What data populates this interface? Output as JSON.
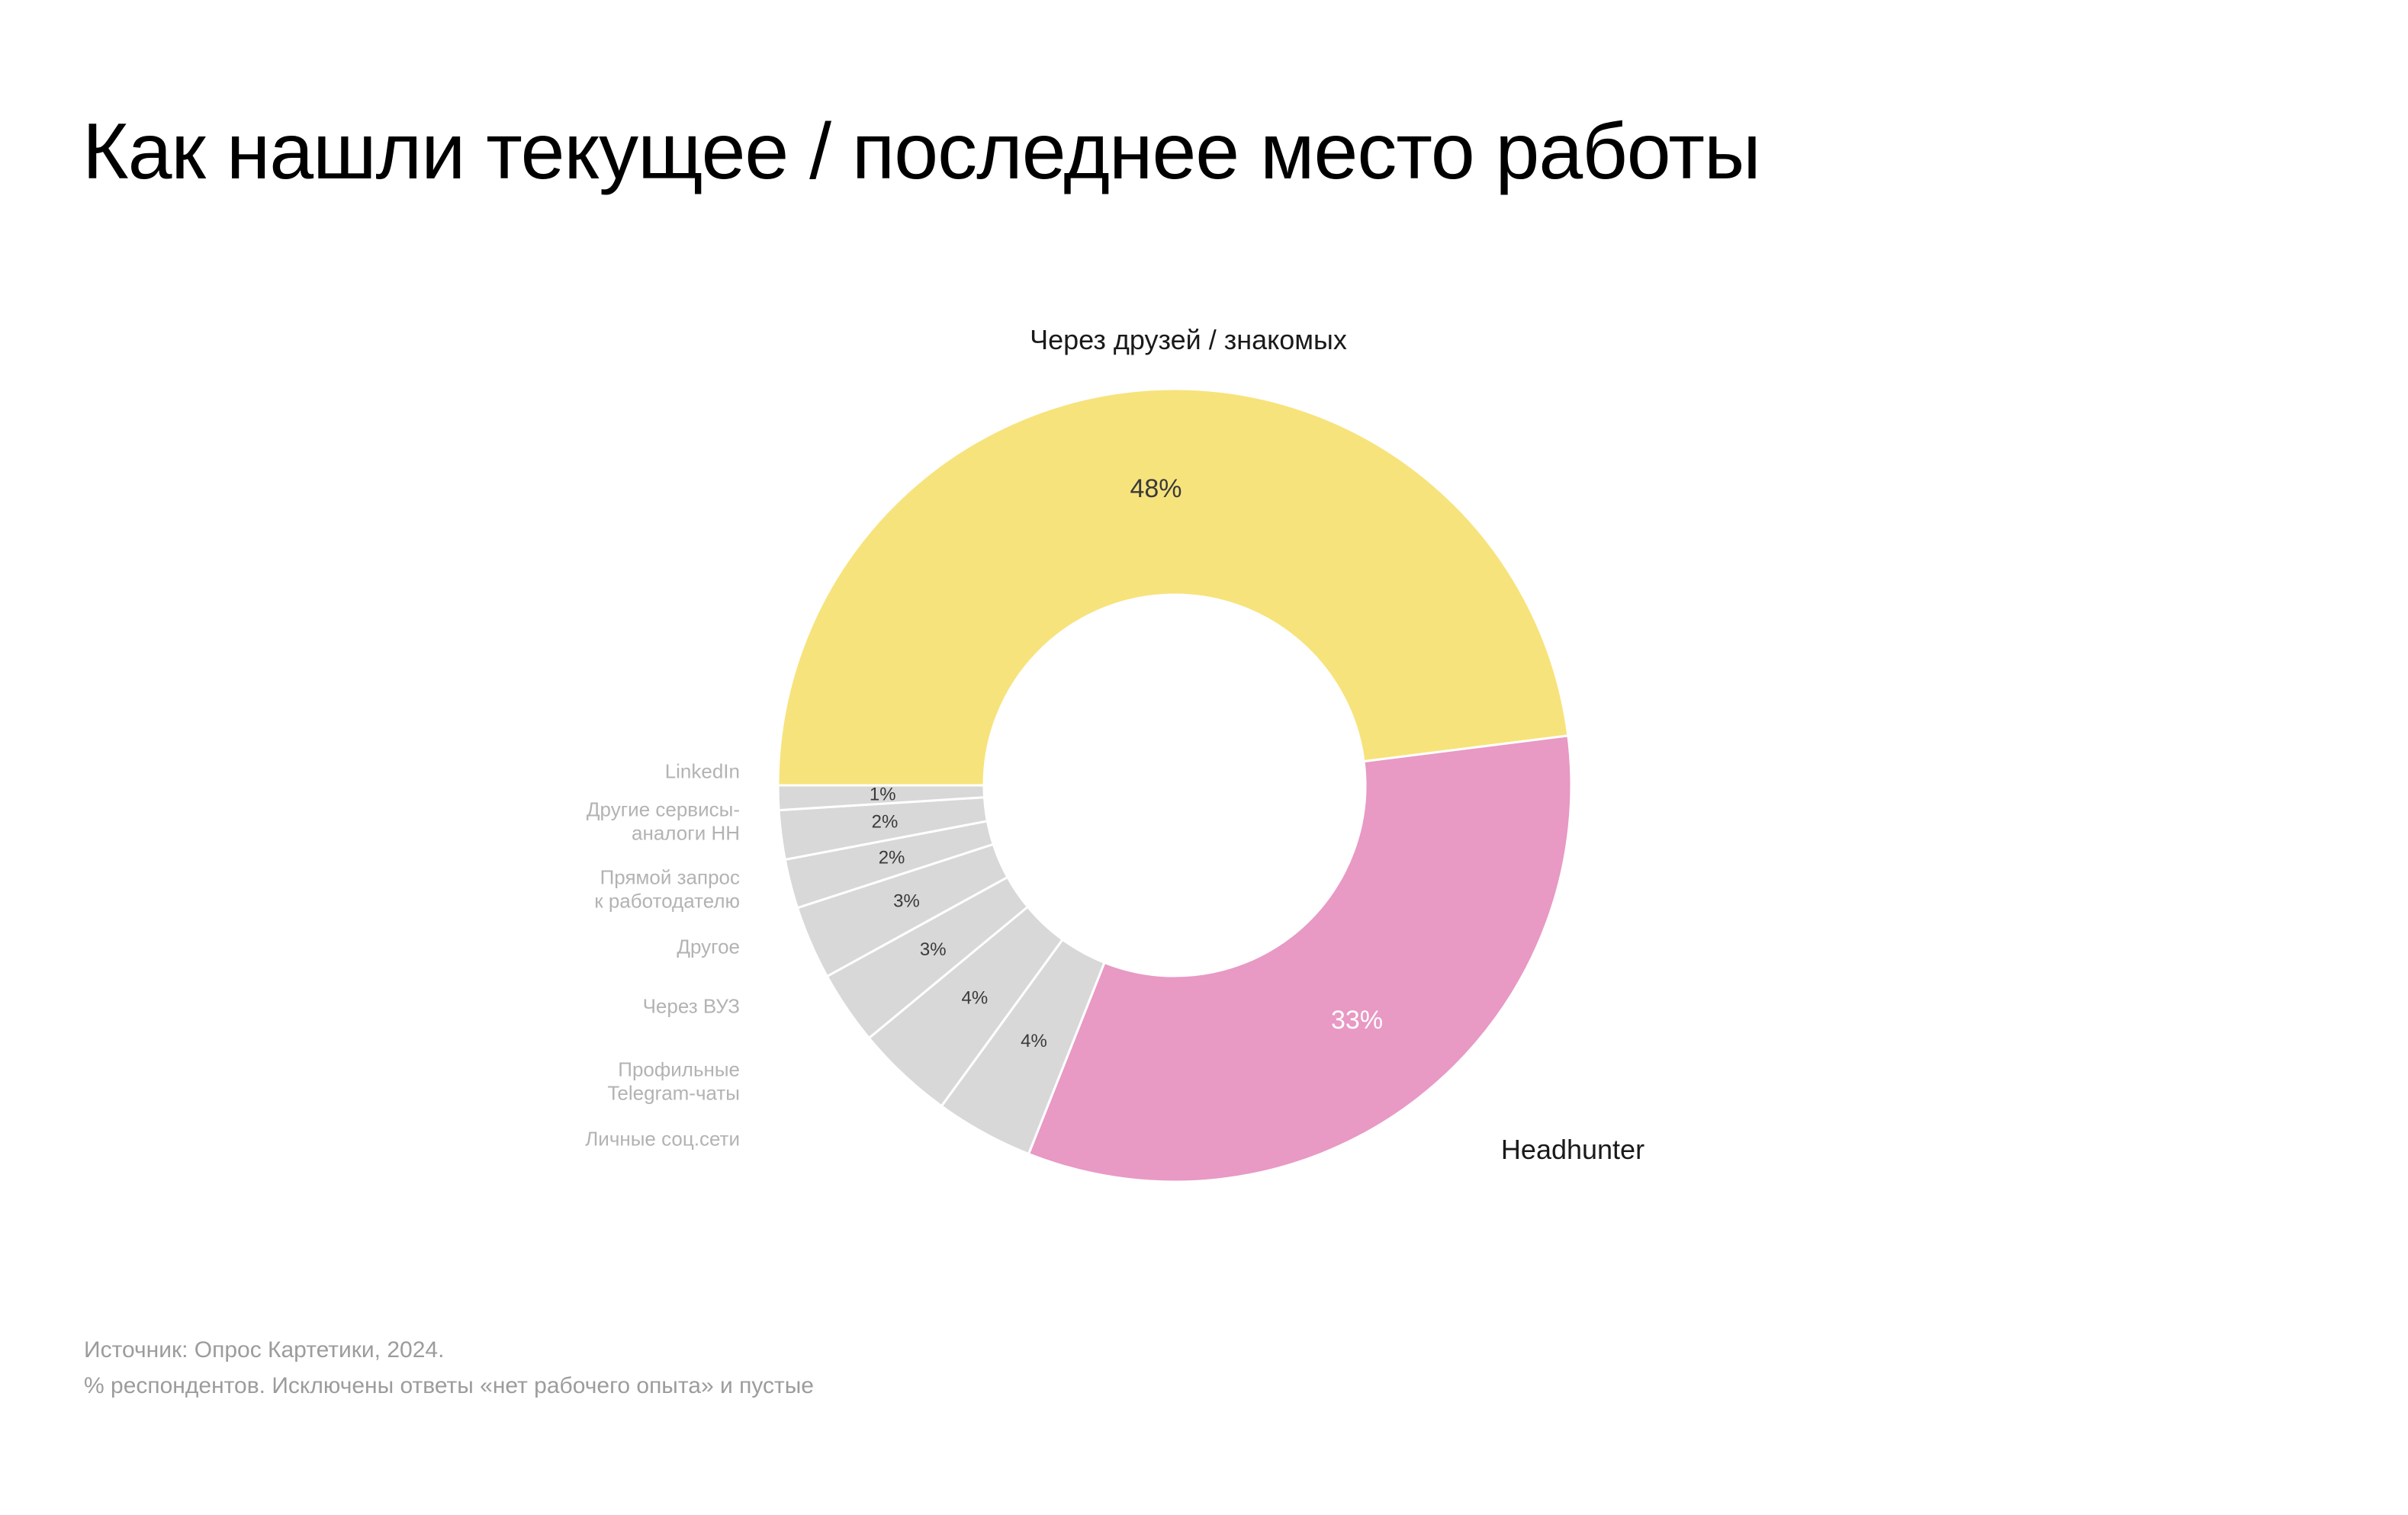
{
  "title": "Как нашли текущее / последнее место работы",
  "source": {
    "line1": "Источник: Опрос Картетики, 2024.",
    "line2": "% респондентов. Исключены ответы «нет рабочего опыта» и пустые"
  },
  "chart_data": {
    "type": "pie",
    "subtype": "donut",
    "unit": "%",
    "start_angle_deg": 180,
    "direction": "clockwise",
    "legend_position": "around",
    "slices": [
      {
        "label": "Через друзей / знакомых",
        "value": 48,
        "value_label": "48%",
        "color": "#F7E37C",
        "value_label_color": "#3a3a3a",
        "callout": "top"
      },
      {
        "label": "Headhunter",
        "value": 33,
        "value_label": "33%",
        "color": "#E899C4",
        "value_label_color": "#ffffff",
        "callout": "right"
      },
      {
        "label": "Личные соц.сети",
        "side_label": "Личные соц.сети",
        "value": 4,
        "value_label": "4%",
        "color": "#D8D8D8",
        "value_label_color": "#3a3a3a",
        "callout": "left"
      },
      {
        "label": "Профильные Telegram-чаты",
        "side_label": "Профильные\nTelegram-чаты",
        "value": 4,
        "value_label": "4%",
        "color": "#D8D8D8",
        "value_label_color": "#3a3a3a",
        "callout": "left"
      },
      {
        "label": "Через ВУЗ",
        "side_label": "Через ВУЗ",
        "value": 3,
        "value_label": "3%",
        "color": "#D8D8D8",
        "value_label_color": "#3a3a3a",
        "callout": "left"
      },
      {
        "label": "Другое",
        "side_label": "Другое",
        "value": 3,
        "value_label": "3%",
        "color": "#D8D8D8",
        "value_label_color": "#3a3a3a",
        "callout": "left"
      },
      {
        "label": "Прямой запрос к работодателю",
        "side_label": "Прямой запрос\nк работодателю",
        "value": 2,
        "value_label": "2%",
        "color": "#D8D8D8",
        "value_label_color": "#3a3a3a",
        "callout": "left"
      },
      {
        "label": "Другие сервисы-аналоги HH",
        "side_label": "Другие сервисы-\nаналоги HH",
        "value": 2,
        "value_label": "2%",
        "color": "#D8D8D8",
        "value_label_color": "#3a3a3a",
        "callout": "left"
      },
      {
        "label": "LinkedIn",
        "side_label": "LinkedIn",
        "value": 1,
        "value_label": "1%",
        "color": "#D8D8D8",
        "value_label_color": "#3a3a3a",
        "callout": "left"
      }
    ]
  }
}
